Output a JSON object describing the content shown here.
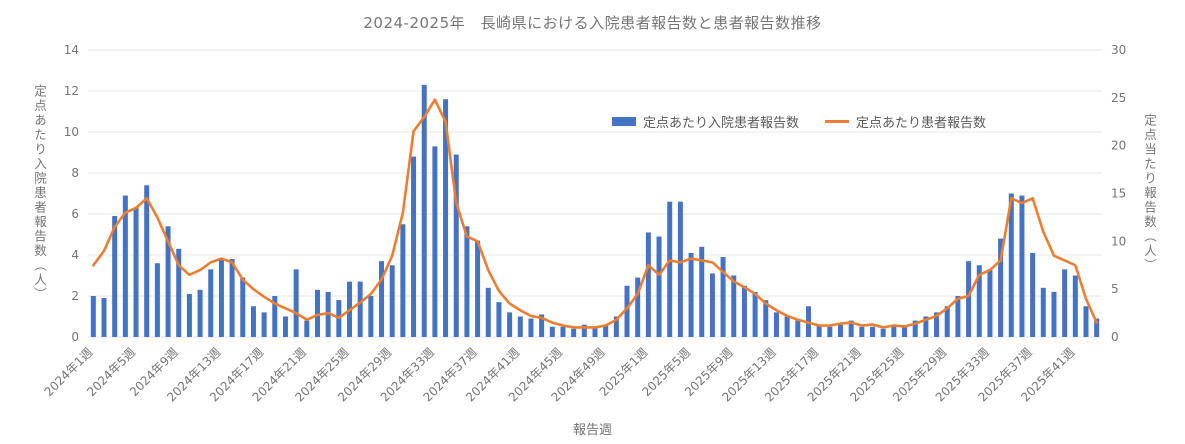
{
  "title": "2024-2025年　長崎県における入院患者報告数と患者報告数推移",
  "axes": {
    "left_label": "定点あたり入院患者報告数（人）",
    "right_label": "定点当たり報告数（人）",
    "x_label": "報告週"
  },
  "legend": {
    "bar_label": "定点あたり入院患者報告数",
    "line_label": "定点あたり患者報告数"
  },
  "colors": {
    "bar": "#4472c4",
    "line": "#ed7d31",
    "text": "#757575",
    "grid": "#e7e7e7"
  },
  "chart_data": {
    "type": "bar+line",
    "title": "2024-2025年　長崎県における入院患者報告数と患者報告数推移",
    "xlabel": "報告週",
    "left_ylabel": "定点あたり入院患者報告数（人）",
    "right_ylabel": "定点当たり報告数（人）",
    "left_ylim": [
      0,
      14
    ],
    "right_ylim": [
      0,
      30
    ],
    "left_ticks": [
      0,
      2,
      4,
      6,
      8,
      10,
      12,
      14
    ],
    "right_ticks": [
      0,
      5,
      10,
      15,
      20,
      25,
      30
    ],
    "grid": "horizontal",
    "legend_position": "top-right-inside",
    "tick_labels": [
      "2024年1週",
      "2024年5週",
      "2024年9週",
      "2024年13週",
      "2024年17週",
      "2024年21週",
      "2024年25週",
      "2024年29週",
      "2024年33週",
      "2024年37週",
      "2024年41週",
      "2024年45週",
      "2024年49週",
      "2025年1週",
      "2025年5週",
      "2025年9週",
      "2025年13週",
      "2025年17週",
      "2025年21週",
      "2025年25週",
      "2025年29週",
      "2025年33週",
      "2025年37週",
      "2025年41週"
    ],
    "tick_positions": [
      0,
      4,
      8,
      12,
      16,
      20,
      24,
      28,
      32,
      36,
      40,
      44,
      48,
      52,
      56,
      60,
      64,
      68,
      72,
      76,
      80,
      84,
      88,
      92
    ],
    "series": [
      {
        "name": "定点あたり入院患者報告数",
        "type": "bar",
        "axis": "left",
        "values": [
          2.0,
          1.9,
          5.9,
          6.9,
          6.3,
          7.4,
          3.6,
          5.4,
          4.3,
          2.1,
          2.3,
          3.3,
          3.8,
          3.8,
          2.9,
          1.5,
          1.2,
          2.0,
          1.0,
          3.3,
          0.8,
          2.3,
          2.2,
          1.8,
          2.7,
          2.7,
          2.0,
          3.7,
          3.5,
          5.5,
          8.8,
          12.3,
          9.3,
          11.6,
          8.9,
          5.4,
          4.7,
          2.4,
          1.7,
          1.2,
          1.0,
          0.9,
          1.1,
          0.5,
          0.5,
          0.4,
          0.6,
          0.5,
          0.6,
          1.0,
          2.5,
          2.9,
          5.1,
          4.9,
          6.6,
          6.6,
          4.1,
          4.4,
          3.1,
          3.9,
          3.0,
          2.5,
          2.2,
          1.8,
          1.2,
          1.0,
          0.8,
          1.5,
          0.6,
          0.5,
          0.6,
          0.8,
          0.5,
          0.5,
          0.4,
          0.6,
          0.5,
          0.8,
          1.0,
          1.2,
          1.5,
          2.0,
          3.7,
          3.5,
          3.3,
          4.8,
          7.0,
          6.9,
          4.1,
          2.4,
          2.2,
          3.3,
          3.0,
          1.5,
          0.9
        ]
      },
      {
        "name": "定点あたり患者報告数",
        "type": "line",
        "axis": "right",
        "values": [
          7.5,
          9.0,
          11.5,
          13.0,
          13.5,
          14.5,
          12.5,
          10.0,
          7.5,
          6.5,
          7.0,
          7.8,
          8.2,
          7.8,
          6.0,
          5.0,
          4.2,
          3.5,
          3.0,
          2.5,
          1.8,
          2.3,
          2.5,
          2.0,
          2.8,
          3.6,
          4.5,
          6.0,
          8.5,
          13.0,
          21.5,
          23.0,
          24.8,
          22.5,
          14.0,
          10.5,
          10.0,
          7.0,
          4.8,
          3.5,
          2.8,
          2.2,
          2.0,
          1.5,
          1.2,
          1.0,
          1.0,
          1.0,
          1.2,
          1.8,
          3.0,
          4.5,
          7.5,
          6.5,
          8.0,
          7.8,
          8.2,
          8.0,
          7.8,
          6.8,
          5.8,
          5.2,
          4.5,
          3.5,
          2.8,
          2.2,
          1.8,
          1.5,
          1.2,
          1.2,
          1.4,
          1.5,
          1.2,
          1.3,
          1.0,
          1.2,
          1.1,
          1.4,
          1.8,
          2.2,
          3.0,
          4.0,
          4.3,
          6.5,
          7.0,
          8.0,
          14.5,
          14.0,
          14.5,
          11.0,
          8.5,
          8.0,
          7.5,
          4.0,
          1.5
        ]
      }
    ]
  }
}
